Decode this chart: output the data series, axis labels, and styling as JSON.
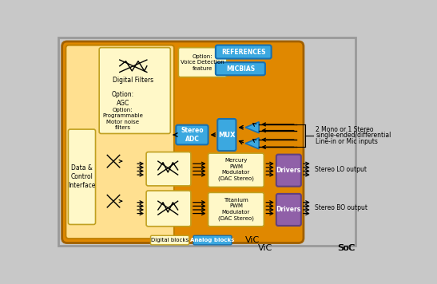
{
  "bg_color": "#c8c8c8",
  "vic_bg": "#e08800",
  "digital_bg": "#ffe090",
  "cream_box": "#fff8c8",
  "analog_fill": "#3ba8e0",
  "purple_fill": "#9060a8",
  "references_label": "REFERENCES",
  "micbias_label": "MICBIAS",
  "stereo_adc_label": "Stereo\nADC",
  "mux_label": "MUX",
  "digital_filters_label": "Digital Filters",
  "agc_label": "Option:\nAGC",
  "motor_label": "Option:\nProgrammable\nMotor noise\nfilters",
  "voice_label": "Option:\nVoice Detection\nfeature",
  "data_ctrl_label": "Data &\nControl\nInterface",
  "mercury_label": "Mercury\nPWM\nModulator\n(DAC Stereo)",
  "titanium_label": "Titanium\nPWM\nModulator\n(DAC Stereo)",
  "drivers_label": "Drivers",
  "digital_blocks_label": "Digital blocks",
  "analog_blocks_label": "Analog blocks",
  "stereo_lo_label": "Stereo LO output",
  "stereo_bo_label": "Stereo BO output",
  "vic_label": "ViC",
  "soc_label": "SoC",
  "input_line1": "2 Mono or 1 Stereo",
  "input_line2": "single-ended/differential",
  "input_line3": "Line-in or Mic inputs"
}
